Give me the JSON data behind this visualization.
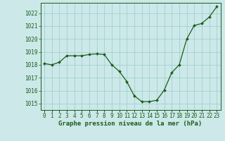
{
  "x": [
    0,
    1,
    2,
    3,
    4,
    5,
    6,
    7,
    8,
    9,
    10,
    11,
    12,
    13,
    14,
    15,
    16,
    17,
    18,
    19,
    20,
    21,
    22,
    23
  ],
  "y": [
    1018.1,
    1018.0,
    1018.2,
    1018.7,
    1018.7,
    1018.7,
    1018.8,
    1018.85,
    1018.8,
    1018.0,
    1017.5,
    1016.7,
    1015.6,
    1015.15,
    1015.15,
    1015.25,
    1016.05,
    1017.4,
    1018.0,
    1020.0,
    1021.05,
    1021.2,
    1021.7,
    1022.5
  ],
  "line_color": "#1a5c1a",
  "marker": "D",
  "marker_size": 2.0,
  "line_width": 0.9,
  "bg_color": "#cce8e8",
  "grid_color": "#99cccc",
  "ylabel_ticks": [
    1015,
    1016,
    1017,
    1018,
    1019,
    1020,
    1021,
    1022
  ],
  "xtick_labels": [
    "0",
    "1",
    "2",
    "3",
    "4",
    "5",
    "6",
    "7",
    "8",
    "9",
    "10",
    "11",
    "12",
    "13",
    "14",
    "15",
    "16",
    "17",
    "18",
    "19",
    "20",
    "21",
    "22",
    "23"
  ],
  "xlabel": "Graphe pression niveau de la mer (hPa)",
  "ylim": [
    1014.5,
    1022.8
  ],
  "xlim": [
    -0.5,
    23.5
  ],
  "xlabel_fontsize": 6.5,
  "tick_fontsize": 5.5,
  "tick_color": "#1a5c1a",
  "border_color": "#1a5c1a"
}
